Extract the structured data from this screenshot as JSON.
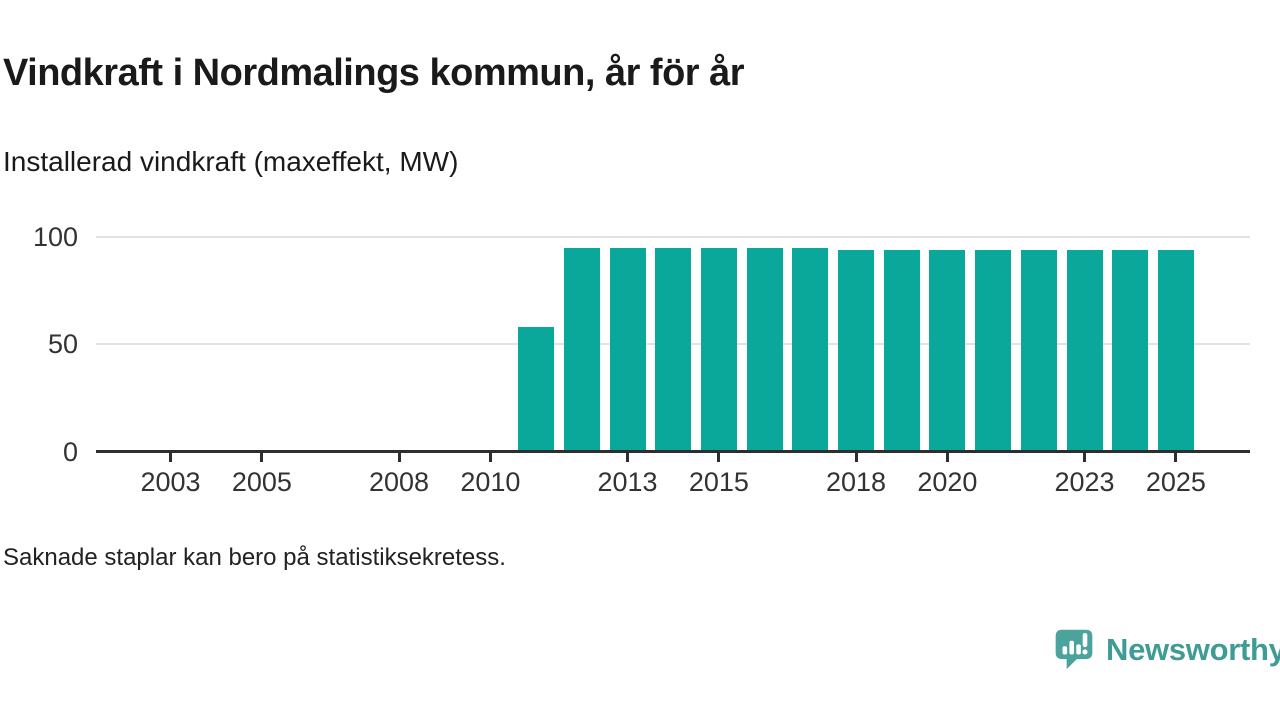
{
  "header": {
    "title": "Vindkraft i Nordmalings kommun, år för år",
    "subtitle": "Installerad vindkraft (maxeffekt, MW)"
  },
  "footnote": "Saknade staplar kan bero på statistiksekretess.",
  "branding": {
    "name": "Newsworthy",
    "icon": "speech-bubble-bar-chart-icon",
    "text_color": "#3e9c95",
    "icon_color": "#4aa39c"
  },
  "colors": {
    "bar": "#0aa79b",
    "axis_line": "#2e2e2e",
    "gridline": "#e2e2e2",
    "heading_text": "#1a1a1a",
    "tick_text": "#333333"
  },
  "chart_data": {
    "type": "bar",
    "title": "Vindkraft i Nordmalings kommun, år för år",
    "subtitle": "Installerad vindkraft (maxeffekt, MW)",
    "unit": "MW",
    "categories": [
      2002,
      2003,
      2004,
      2005,
      2006,
      2007,
      2008,
      2009,
      2010,
      2011,
      2012,
      2013,
      2014,
      2015,
      2016,
      2017,
      2018,
      2019,
      2020,
      2021,
      2022,
      2023,
      2024,
      2025
    ],
    "values": [
      null,
      null,
      null,
      null,
      null,
      null,
      null,
      null,
      null,
      58,
      95,
      95,
      95,
      95,
      95,
      95,
      94,
      94,
      94,
      94,
      94,
      94,
      94,
      94
    ],
    "x_tick_labels": [
      "2003",
      "2005",
      "2008",
      "2010",
      "2013",
      "2015",
      "2018",
      "2020",
      "2023",
      "2025"
    ],
    "y_ticks": [
      0,
      50,
      100
    ],
    "ylim": [
      0,
      100
    ],
    "grid": "horizontal",
    "legend": "none"
  }
}
